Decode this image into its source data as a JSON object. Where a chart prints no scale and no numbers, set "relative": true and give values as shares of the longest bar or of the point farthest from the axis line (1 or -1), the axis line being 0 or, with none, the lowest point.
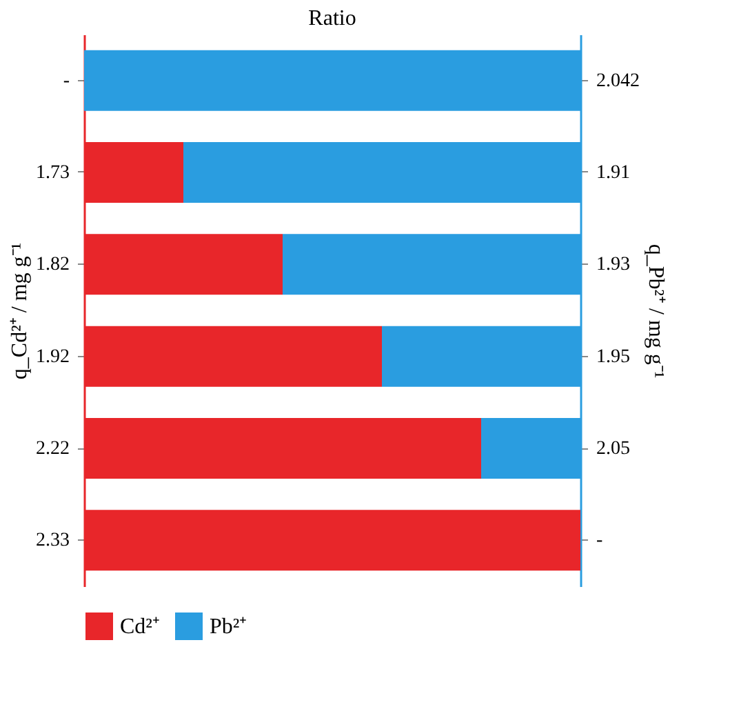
{
  "chart_data": {
    "type": "bar",
    "orientation": "horizontal",
    "stacked": true,
    "relative": true,
    "title": "Ratio",
    "ylabel": "q_Cd²⁺ / mg g⁻¹",
    "y2label": "q_Pb²⁺ / mg g⁻¹",
    "categories": [
      "-",
      "1.73",
      "1.82",
      "1.92",
      "2.22",
      "2.33"
    ],
    "y2_categories": [
      "2.042",
      "1.91",
      "1.93",
      "1.95",
      "2.05",
      "-"
    ],
    "series": [
      {
        "name": "Cd²⁺",
        "color": "#e8262a",
        "values": [
          0,
          0.2,
          0.4,
          0.6,
          0.8,
          1
        ]
      },
      {
        "name": "Pb²⁺",
        "color": "#2a9de0",
        "values": [
          1,
          0.8,
          0.6,
          0.4,
          0.2,
          0
        ]
      }
    ],
    "legend": "bottom"
  }
}
